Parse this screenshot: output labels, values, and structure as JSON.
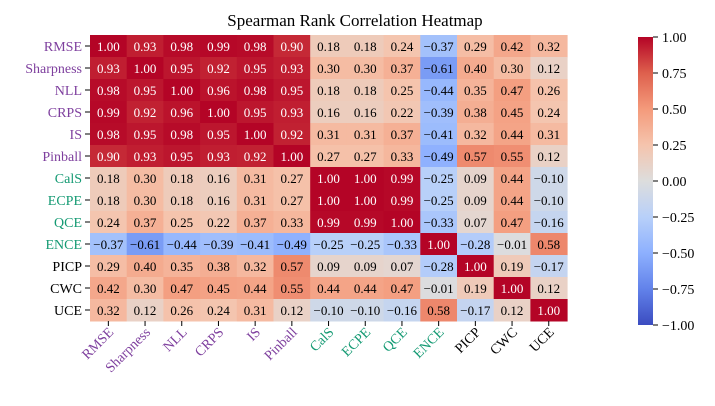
{
  "chart_data": {
    "type": "heatmap",
    "title": "Spearman Rank Correlation Heatmap",
    "xlabel": "",
    "ylabel": "",
    "labels": [
      "RMSE",
      "Sharpness",
      "NLL",
      "CRPS",
      "IS",
      "Pinball",
      "CalS",
      "ECPE",
      "QCE",
      "ENCE",
      "PICP",
      "CWC",
      "UCE"
    ],
    "label_groups": [
      "purple",
      "purple",
      "purple",
      "purple",
      "purple",
      "purple",
      "green",
      "green",
      "green",
      "green",
      "black",
      "black",
      "black"
    ],
    "group_colors": {
      "purple": "#7e3f9e",
      "green": "#149a73",
      "black": "#000000"
    },
    "values": [
      [
        1.0,
        0.93,
        0.98,
        0.99,
        0.98,
        0.9,
        0.18,
        0.18,
        0.24,
        -0.37,
        0.29,
        0.42,
        0.32
      ],
      [
        0.93,
        1.0,
        0.95,
        0.92,
        0.95,
        0.93,
        0.3,
        0.3,
        0.37,
        -0.61,
        0.4,
        0.3,
        0.12
      ],
      [
        0.98,
        0.95,
        1.0,
        0.96,
        0.98,
        0.95,
        0.18,
        0.18,
        0.25,
        -0.44,
        0.35,
        0.47,
        0.26
      ],
      [
        0.99,
        0.92,
        0.96,
        1.0,
        0.95,
        0.93,
        0.16,
        0.16,
        0.22,
        -0.39,
        0.38,
        0.45,
        0.24
      ],
      [
        0.98,
        0.95,
        0.98,
        0.95,
        1.0,
        0.92,
        0.31,
        0.31,
        0.37,
        -0.41,
        0.32,
        0.44,
        0.31
      ],
      [
        0.9,
        0.93,
        0.95,
        0.93,
        0.92,
        1.0,
        0.27,
        0.27,
        0.33,
        -0.49,
        0.57,
        0.55,
        0.12
      ],
      [
        0.18,
        0.3,
        0.18,
        0.16,
        0.31,
        0.27,
        1.0,
        1.0,
        0.99,
        -0.25,
        0.09,
        0.44,
        -0.1
      ],
      [
        0.18,
        0.3,
        0.18,
        0.16,
        0.31,
        0.27,
        1.0,
        1.0,
        0.99,
        -0.25,
        0.09,
        0.44,
        -0.1
      ],
      [
        0.24,
        0.37,
        0.25,
        0.22,
        0.37,
        0.33,
        0.99,
        0.99,
        1.0,
        -0.33,
        0.07,
        0.47,
        -0.16
      ],
      [
        -0.37,
        -0.61,
        -0.44,
        -0.39,
        -0.41,
        -0.49,
        -0.25,
        -0.25,
        -0.33,
        1.0,
        -0.28,
        -0.01,
        0.58
      ],
      [
        0.29,
        0.4,
        0.35,
        0.38,
        0.32,
        0.57,
        0.09,
        0.09,
        0.07,
        -0.28,
        1.0,
        0.19,
        -0.17
      ],
      [
        0.42,
        0.3,
        0.47,
        0.45,
        0.44,
        0.55,
        0.44,
        0.44,
        0.47,
        -0.01,
        0.19,
        1.0,
        0.12
      ],
      [
        0.32,
        0.12,
        0.26,
        0.24,
        0.31,
        0.12,
        -0.1,
        -0.1,
        -0.16,
        0.58,
        -0.17,
        0.12,
        1.0
      ]
    ],
    "vmin": -1.0,
    "vmax": 1.0,
    "colormap": "coolwarm",
    "colorbar_ticks": [
      "1.00",
      "0.75",
      "0.50",
      "0.25",
      "0.00",
      "−0.25",
      "−0.50",
      "−0.75",
      "−1.00"
    ],
    "colorbar_tick_values": [
      1.0,
      0.75,
      0.5,
      0.25,
      0.0,
      -0.25,
      -0.5,
      -0.75,
      -1.0
    ],
    "annotate": true,
    "grid": false
  }
}
